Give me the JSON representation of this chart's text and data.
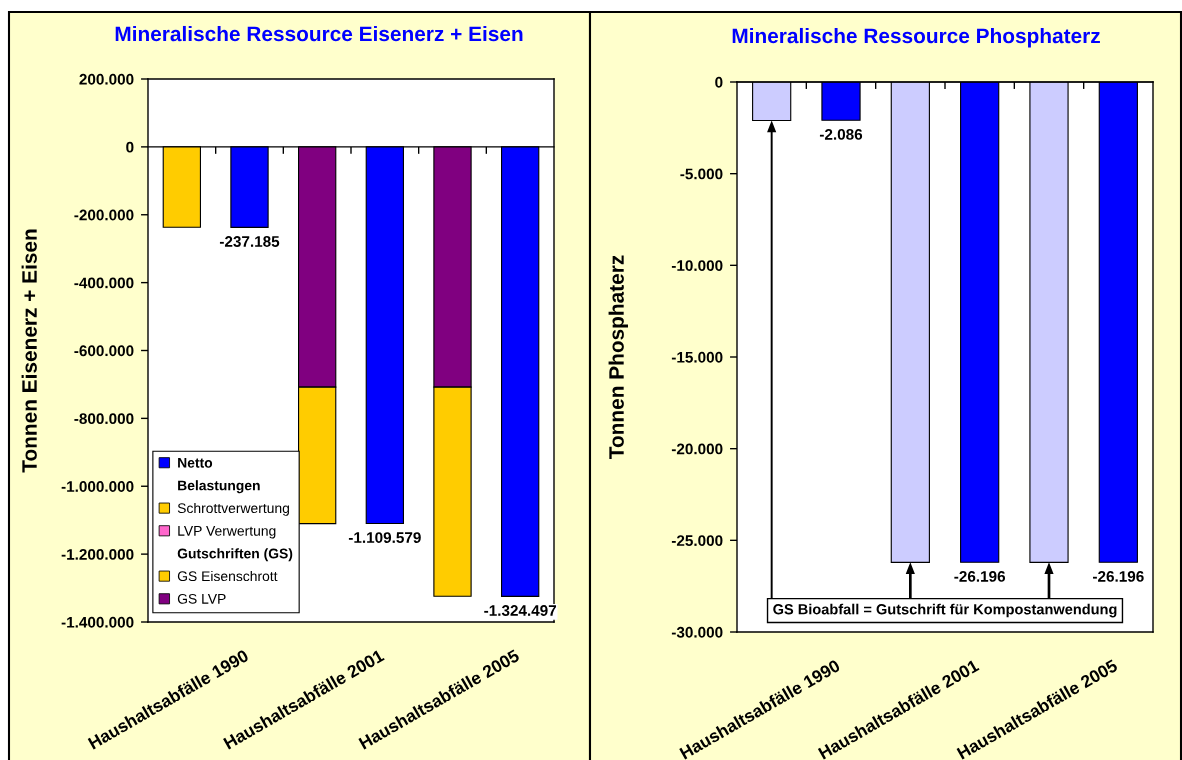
{
  "chart_data": [
    {
      "type": "bar",
      "title": "Mineralische Ressource Eisenerz + Eisen",
      "ylabel": "Tonnen Eisenerz + Eisen",
      "categories": [
        null,
        "Haushaltsabfälle 1990",
        null,
        "Haushaltsabfälle 2001",
        null,
        "Haushaltsabfälle 2005"
      ],
      "stacked": true,
      "series": [
        {
          "name": "GS LVP",
          "color": "#800080",
          "values": [
            null,
            null,
            -708000,
            null,
            -708000,
            null
          ]
        },
        {
          "name": "GS Eisenschrott",
          "color": "#FFCC00",
          "values": [
            -237000,
            null,
            -402000,
            null,
            -616000,
            null
          ]
        },
        {
          "name": "Gutschriften (GS)",
          "values": [
            null,
            null,
            null,
            null,
            null,
            null
          ]
        },
        {
          "name": "LVP Verwertung",
          "color": "#FF66CC",
          "values": [
            null,
            null,
            null,
            null,
            null,
            null
          ]
        },
        {
          "name": "Schrottverwertung",
          "color": "#FFCC00",
          "values": [
            null,
            null,
            null,
            null,
            null,
            null
          ]
        },
        {
          "name": "Belastungen",
          "values": [
            null,
            null,
            null,
            null,
            null,
            null
          ]
        },
        {
          "name": "Netto",
          "color": "#0000FF",
          "values": [
            null,
            -237185,
            null,
            -1109579,
            null,
            -1324497
          ],
          "value_labels": [
            null,
            "-237.185",
            null,
            "-1.109.579",
            null,
            "-1.324.497"
          ]
        }
      ],
      "ylim": [
        -1400000,
        200000
      ],
      "yticks": [
        {
          "value": 200000,
          "label": "200.000"
        },
        0,
        {
          "value": -200000,
          "label": "-200.000"
        },
        {
          "value": -400000,
          "label": "-400.000"
        },
        {
          "value": -600000,
          "label": "-600.000"
        },
        {
          "value": -800000,
          "label": "-800.000"
        },
        {
          "value": -1000000,
          "label": "-1.000.000"
        },
        {
          "value": -1200000,
          "label": "-1.200.000"
        },
        {
          "value": -1400000,
          "label": "-1.400.000"
        }
      ],
      "legend": "bottom left"
    },
    {
      "type": "bar",
      "title": "Mineralische Ressource Phosphaterz",
      "ylabel": "Tonnen Phosphaterz",
      "categories": [
        null,
        "Haushaltsabfälle 1990",
        null,
        "Haushaltsabfälle 2001",
        null,
        "Haushaltsabfälle 2005"
      ],
      "stacked": true,
      "series": [
        {
          "color": "#CCCCFF",
          "values": [
            -2100,
            null,
            -26200,
            null,
            -26200,
            null
          ]
        },
        {
          "color": "#0000FF",
          "values": [
            null,
            -2086,
            null,
            -26196,
            null,
            -26196
          ],
          "value_labels": [
            null,
            "-2.086",
            null,
            "-26.196",
            null,
            "-26.196"
          ]
        }
      ],
      "ylim": [
        -30000,
        0
      ],
      "yticks": [
        0,
        {
          "value": -5000,
          "label": "-5.000"
        },
        {
          "value": -10000,
          "label": "-10.000"
        },
        {
          "value": -15000,
          "label": "-15.000"
        },
        {
          "value": -20000,
          "label": "-20.000"
        },
        {
          "value": -25000,
          "label": "-25.000"
        },
        {
          "value": -30000,
          "label": "-30.000"
        }
      ],
      "annotations": [
        "GS Bioabfall = Gutschrift für Kompostanwendung"
      ]
    }
  ]
}
